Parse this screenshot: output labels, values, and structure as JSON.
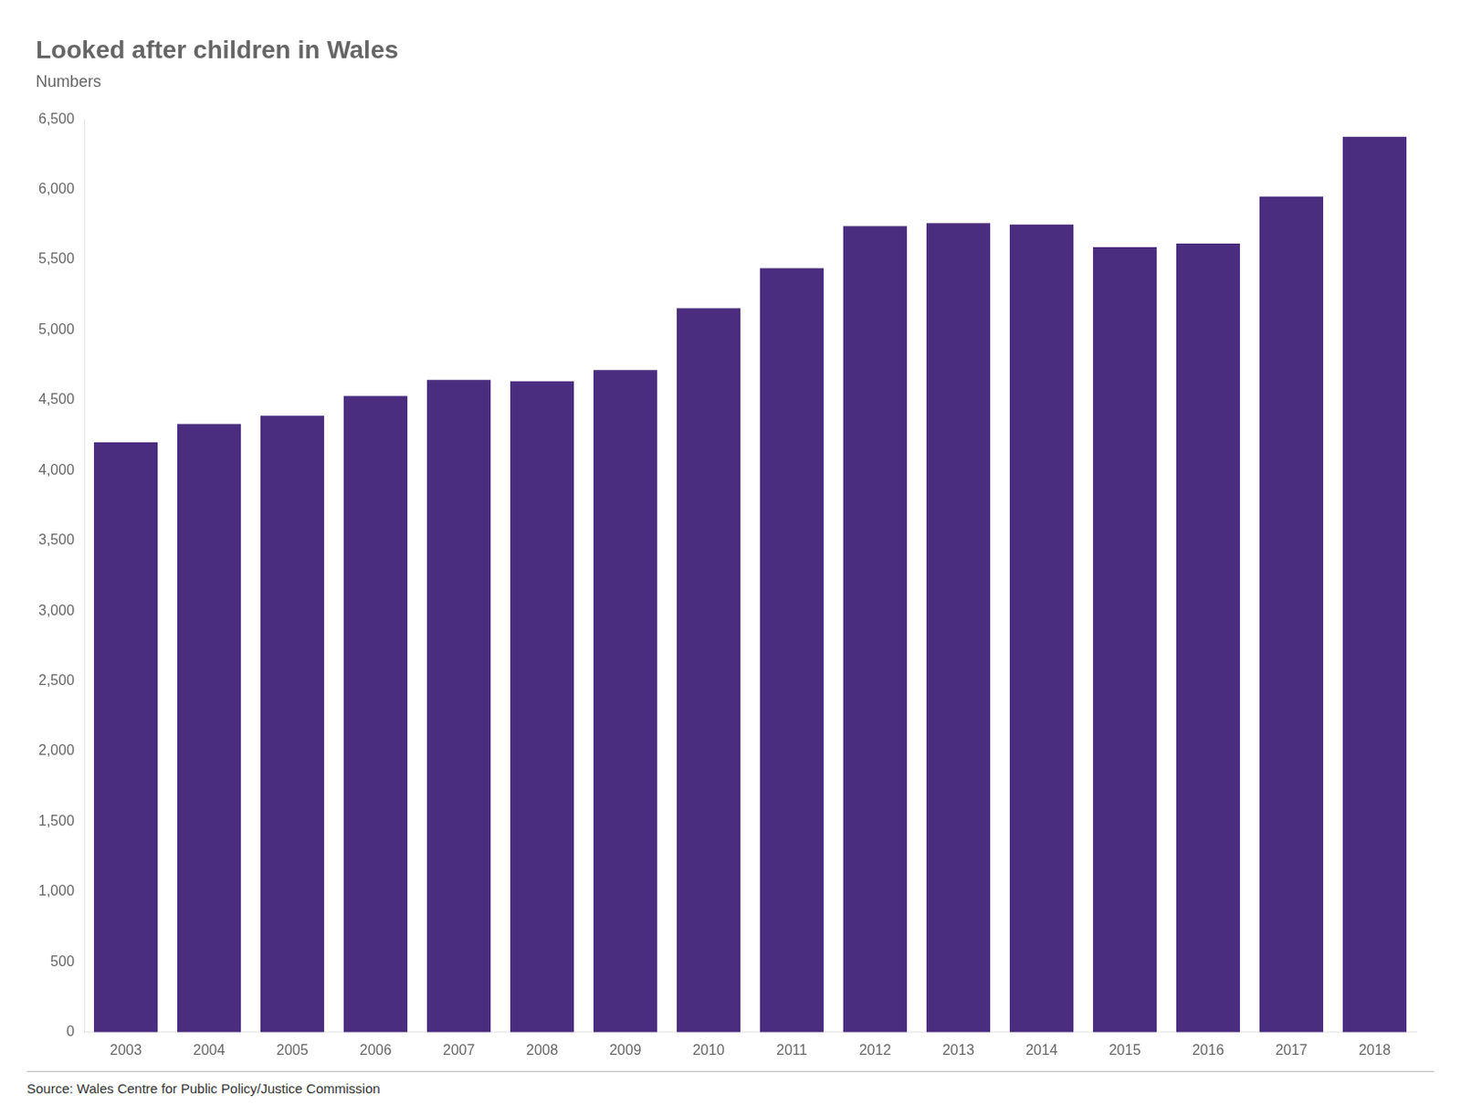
{
  "chart_data": {
    "type": "bar",
    "title": "Looked after children in Wales",
    "subtitle": "Numbers",
    "source": "Source: Wales Centre for Public Policy/Justice Commission",
    "categories": [
      "2003",
      "2004",
      "2005",
      "2006",
      "2007",
      "2008",
      "2009",
      "2010",
      "2011",
      "2012",
      "2013",
      "2014",
      "2015",
      "2016",
      "2017",
      "2018"
    ],
    "values": [
      4200,
      4330,
      4390,
      4530,
      4645,
      4635,
      4715,
      5155,
      5440,
      5740,
      5760,
      5750,
      5590,
      5615,
      5950,
      6375
    ],
    "color": "#4b2d80",
    "ylim": [
      0,
      6500
    ],
    "yticks": [
      0,
      500,
      {
        "value": 1000,
        "label": "1,000"
      },
      {
        "value": 1500,
        "label": "1,500"
      },
      {
        "value": 2000,
        "label": "2,000"
      },
      {
        "value": 2500,
        "label": "2,500"
      },
      {
        "value": 3000,
        "label": "3,000"
      },
      {
        "value": 3500,
        "label": "3,500"
      },
      {
        "value": 4000,
        "label": "4,000"
      },
      {
        "value": 4500,
        "label": "4,500"
      },
      {
        "value": 5000,
        "label": "5,000"
      },
      {
        "value": 5500,
        "label": "5,500"
      },
      {
        "value": 6000,
        "label": "6,000"
      },
      {
        "value": 6500,
        "label": "6,500"
      }
    ],
    "grid": false
  }
}
